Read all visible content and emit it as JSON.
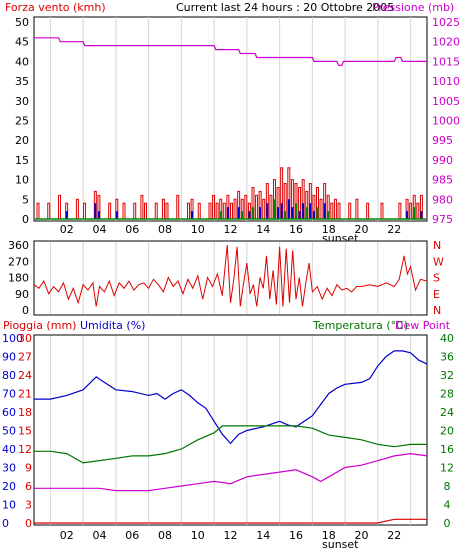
{
  "header": {
    "left_title": "Forza vento (kmh)",
    "center_title": "Current last 24 hours : 20 Ottobre 2005",
    "right_title": "Pressione (mb)"
  },
  "lower_header": {
    "rain_label": "Pioggia (mm)",
    "humidity_label": "Umidita (%)",
    "temp_label": "Temperatura (°C)",
    "dew_label": "Dew Point"
  },
  "x_ticks": [
    "02",
    "04",
    "06",
    "08",
    "10",
    "12",
    "14",
    "16",
    "18",
    "20",
    "22"
  ],
  "sunset_label": "sunset",
  "colors": {
    "wind": "#dd0000",
    "gust_bar": "#0000cc",
    "green_bar": "#008800",
    "pressure": "#cc00cc",
    "direction": "#dd0000",
    "humidity": "#0000cc",
    "temperature": "#007700",
    "dewpoint": "#cc00cc",
    "rain": "#dd0000"
  },
  "chart_data": [
    {
      "type": "bar",
      "name": "wind_pressure",
      "y_left_ticks": [
        "50",
        "45",
        "40",
        "35",
        "30",
        "25",
        "20",
        "15",
        "10",
        "5",
        "0"
      ],
      "y_right_ticks": [
        "1025",
        "1020",
        "1015",
        "1010",
        "1005",
        "1000",
        "995",
        "990",
        "985",
        "980",
        "975"
      ],
      "ylim_left": [
        0,
        50
      ],
      "ylim_right": [
        975,
        1025
      ],
      "wind_bars_kmh": [
        4,
        0,
        0,
        4,
        0,
        0,
        6,
        0,
        4,
        0,
        0,
        5,
        0,
        4,
        0,
        0,
        7,
        6,
        0,
        0,
        4,
        0,
        5,
        0,
        4,
        0,
        0,
        4,
        0,
        6,
        4,
        0,
        0,
        4,
        0,
        5,
        4,
        0,
        0,
        6,
        0,
        0,
        4,
        5,
        0,
        4,
        0,
        0,
        4,
        6,
        4,
        5,
        4,
        6,
        4,
        5,
        7,
        5,
        6,
        4,
        8,
        6,
        7,
        5,
        9,
        6,
        10,
        8,
        13,
        9,
        13,
        10,
        9,
        8,
        10,
        7,
        9,
        6,
        8,
        5,
        9,
        6,
        4,
        5,
        4,
        0,
        0,
        4,
        0,
        5,
        0,
        0,
        4,
        0,
        0,
        0,
        4,
        0,
        0,
        0,
        0,
        4,
        0,
        5,
        4,
        6,
        4,
        6
      ],
      "gust_bars_kmh": [
        0,
        0,
        0,
        0,
        0,
        0,
        0,
        0,
        2,
        0,
        0,
        0,
        0,
        0,
        0,
        0,
        4,
        2,
        0,
        0,
        0,
        0,
        2,
        0,
        0,
        0,
        0,
        0,
        0,
        0,
        0,
        0,
        0,
        0,
        0,
        0,
        0,
        0,
        0,
        0,
        0,
        0,
        0,
        2,
        0,
        0,
        0,
        0,
        0,
        0,
        0,
        2,
        0,
        3,
        0,
        0,
        3,
        2,
        0,
        2,
        3,
        0,
        3,
        0,
        4,
        0,
        5,
        3,
        4,
        2,
        5,
        3,
        4,
        2,
        4,
        3,
        4,
        2,
        3,
        0,
        4,
        2,
        0,
        0,
        0,
        0,
        0,
        0,
        0,
        0,
        0,
        0,
        0,
        0,
        0,
        0,
        0,
        0,
        0,
        0,
        0,
        0,
        0,
        2,
        0,
        3,
        0,
        2
      ],
      "pressure_mb": [
        [
          0,
          1021
        ],
        [
          1.5,
          1021
        ],
        [
          1.6,
          1020
        ],
        [
          3,
          1020
        ],
        [
          3.1,
          1019
        ],
        [
          11,
          1019
        ],
        [
          11.1,
          1018
        ],
        [
          12,
          1018
        ],
        [
          12.5,
          1018
        ],
        [
          12.6,
          1017
        ],
        [
          13.5,
          1017
        ],
        [
          13.6,
          1016
        ],
        [
          17,
          1016
        ],
        [
          17.1,
          1015
        ],
        [
          18.5,
          1015
        ],
        [
          18.6,
          1014
        ],
        [
          18.8,
          1014
        ],
        [
          18.9,
          1015
        ],
        [
          22,
          1015
        ],
        [
          22.1,
          1016
        ],
        [
          22.4,
          1016
        ],
        [
          22.5,
          1015
        ],
        [
          24,
          1015
        ]
      ]
    },
    {
      "type": "line",
      "name": "wind_direction",
      "y_left_ticks": [
        "360",
        "270",
        "180",
        "90",
        "0"
      ],
      "y_right_ticks": [
        "N",
        "W",
        "S",
        "E",
        "N"
      ],
      "ylim": [
        0,
        360
      ],
      "direction_deg": [
        [
          0,
          140
        ],
        [
          0.3,
          120
        ],
        [
          0.6,
          160
        ],
        [
          0.9,
          90
        ],
        [
          1.2,
          130
        ],
        [
          1.5,
          100
        ],
        [
          1.8,
          150
        ],
        [
          2.1,
          60
        ],
        [
          2.4,
          120
        ],
        [
          2.7,
          40
        ],
        [
          3,
          140
        ],
        [
          3.3,
          110
        ],
        [
          3.6,
          150
        ],
        [
          3.8,
          20
        ],
        [
          4,
          130
        ],
        [
          4.3,
          100
        ],
        [
          4.6,
          160
        ],
        [
          4.9,
          80
        ],
        [
          5.2,
          150
        ],
        [
          5.5,
          120
        ],
        [
          5.8,
          160
        ],
        [
          6.1,
          110
        ],
        [
          6.4,
          140
        ],
        [
          6.7,
          150
        ],
        [
          7,
          120
        ],
        [
          7.3,
          170
        ],
        [
          7.6,
          140
        ],
        [
          7.9,
          100
        ],
        [
          8.2,
          180
        ],
        [
          8.5,
          130
        ],
        [
          8.8,
          160
        ],
        [
          9.1,
          90
        ],
        [
          9.4,
          170
        ],
        [
          9.7,
          120
        ],
        [
          10,
          190
        ],
        [
          10.3,
          60
        ],
        [
          10.6,
          180
        ],
        [
          10.9,
          130
        ],
        [
          11.2,
          200
        ],
        [
          11.5,
          80
        ],
        [
          11.8,
          360
        ],
        [
          12,
          40
        ],
        [
          12.2,
          170
        ],
        [
          12.4,
          350
        ],
        [
          12.6,
          20
        ],
        [
          12.8,
          150
        ],
        [
          13,
          260
        ],
        [
          13.2,
          90
        ],
        [
          13.4,
          140
        ],
        [
          13.6,
          20
        ],
        [
          13.8,
          180
        ],
        [
          14,
          120
        ],
        [
          14.2,
          300
        ],
        [
          14.4,
          60
        ],
        [
          14.6,
          220
        ],
        [
          14.8,
          30
        ],
        [
          15,
          350
        ],
        [
          15.2,
          20
        ],
        [
          15.4,
          340
        ],
        [
          15.6,
          40
        ],
        [
          15.8,
          330
        ],
        [
          16,
          60
        ],
        [
          16.2,
          180
        ],
        [
          16.4,
          20
        ],
        [
          16.6,
          150
        ],
        [
          16.8,
          260
        ],
        [
          17,
          100
        ],
        [
          17.3,
          130
        ],
        [
          17.6,
          60
        ],
        [
          17.9,
          120
        ],
        [
          18.2,
          80
        ],
        [
          18.5,
          140
        ],
        [
          18.8,
          110
        ],
        [
          19.1,
          120
        ],
        [
          19.4,
          100
        ],
        [
          19.7,
          130
        ],
        [
          20,
          130
        ],
        [
          20.5,
          140
        ],
        [
          21,
          130
        ],
        [
          21.5,
          150
        ],
        [
          22,
          130
        ],
        [
          22.3,
          170
        ],
        [
          22.6,
          300
        ],
        [
          22.8,
          200
        ],
        [
          23,
          240
        ],
        [
          23.3,
          110
        ],
        [
          23.6,
          170
        ],
        [
          24,
          160
        ]
      ]
    },
    {
      "type": "line",
      "name": "temp_humidity_rain",
      "y_rain_ticks": [
        "100",
        "90",
        "80",
        "70",
        "60",
        "50",
        "40",
        "30",
        "20",
        "10",
        "0"
      ],
      "y_hum_ticks": [
        "30",
        "27",
        "24",
        "21",
        "18",
        "15",
        "12",
        "9",
        "6",
        "3",
        "0"
      ],
      "y_temp_ticks": [
        "40",
        "36",
        "32",
        "28",
        "24",
        "20",
        "16",
        "12",
        "8",
        "4",
        "0"
      ],
      "ylim_humidity": [
        0,
        100
      ],
      "ylim_temp": [
        0,
        40
      ],
      "humidity_pct": [
        [
          0,
          67
        ],
        [
          1,
          67
        ],
        [
          2,
          69
        ],
        [
          3,
          72
        ],
        [
          3.8,
          79
        ],
        [
          4.3,
          76
        ],
        [
          5,
          72
        ],
        [
          6,
          71
        ],
        [
          7,
          69
        ],
        [
          7.5,
          70
        ],
        [
          8,
          67
        ],
        [
          8.5,
          70
        ],
        [
          9,
          72
        ],
        [
          9.5,
          69
        ],
        [
          10,
          65
        ],
        [
          10.5,
          62
        ],
        [
          11,
          55
        ],
        [
          11.5,
          48
        ],
        [
          12,
          43
        ],
        [
          12.5,
          48
        ],
        [
          13,
          50
        ],
        [
          14,
          52
        ],
        [
          15,
          55
        ],
        [
          15.5,
          53
        ],
        [
          16,
          52
        ],
        [
          17,
          58
        ],
        [
          17.5,
          64
        ],
        [
          18,
          70
        ],
        [
          18.5,
          73
        ],
        [
          19,
          75
        ],
        [
          20,
          76
        ],
        [
          20.5,
          78
        ],
        [
          21,
          85
        ],
        [
          21.5,
          90
        ],
        [
          22,
          93
        ],
        [
          22.5,
          93
        ],
        [
          23,
          92
        ],
        [
          23.5,
          88
        ],
        [
          24,
          86
        ]
      ],
      "temperature_c": [
        [
          0,
          15.5
        ],
        [
          1,
          15.5
        ],
        [
          2,
          15
        ],
        [
          3,
          13
        ],
        [
          4,
          13.5
        ],
        [
          5,
          14
        ],
        [
          6,
          14.5
        ],
        [
          7,
          14.5
        ],
        [
          8,
          15
        ],
        [
          9,
          16
        ],
        [
          10,
          18
        ],
        [
          11,
          19.5
        ],
        [
          11.5,
          21
        ],
        [
          12,
          21
        ],
        [
          13,
          21
        ],
        [
          14,
          21
        ],
        [
          15,
          21
        ],
        [
          16,
          21
        ],
        [
          17,
          20.5
        ],
        [
          18,
          19
        ],
        [
          19,
          18.5
        ],
        [
          20,
          18
        ],
        [
          21,
          17
        ],
        [
          22,
          16.5
        ],
        [
          23,
          17
        ],
        [
          24,
          17
        ]
      ],
      "dewpoint_c": [
        [
          0,
          7.5
        ],
        [
          1,
          7.5
        ],
        [
          2,
          7.5
        ],
        [
          3,
          7.5
        ],
        [
          4,
          7.5
        ],
        [
          5,
          7
        ],
        [
          6,
          7
        ],
        [
          7,
          7
        ],
        [
          8,
          7.5
        ],
        [
          9,
          8
        ],
        [
          10,
          8.5
        ],
        [
          11,
          9
        ],
        [
          12,
          8.5
        ],
        [
          13,
          10
        ],
        [
          14,
          10.5
        ],
        [
          15,
          11
        ],
        [
          16,
          11.5
        ],
        [
          17,
          10
        ],
        [
          17.5,
          9
        ],
        [
          18,
          10
        ],
        [
          19,
          12
        ],
        [
          20,
          12.5
        ],
        [
          21,
          13.5
        ],
        [
          22,
          14.5
        ],
        [
          23,
          15
        ],
        [
          24,
          14.5
        ]
      ],
      "rain_mm": [
        [
          0,
          0
        ],
        [
          21,
          0
        ],
        [
          21.5,
          1
        ],
        [
          22,
          2
        ],
        [
          24,
          2
        ]
      ]
    }
  ]
}
